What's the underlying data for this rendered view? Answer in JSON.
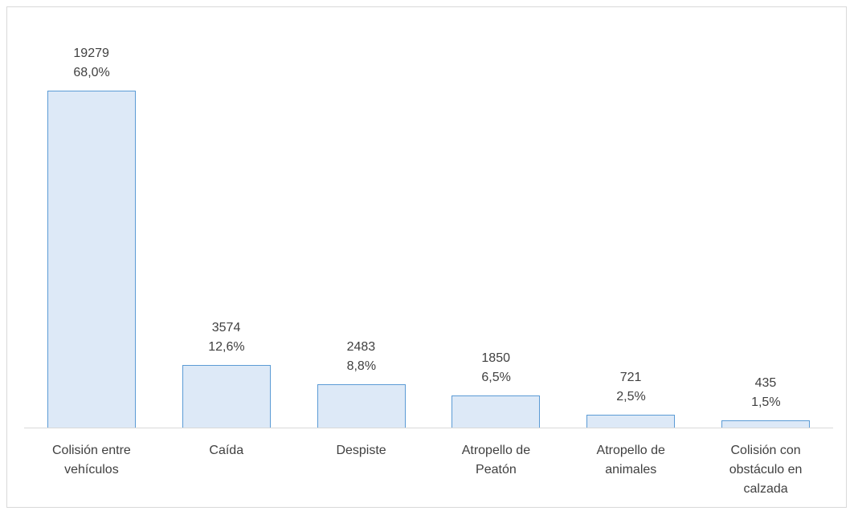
{
  "chart_data": {
    "type": "bar",
    "categories": [
      "Colisión entre vehículos",
      "Caída",
      "Despiste",
      "Atropello de Peatón",
      "Atropello de animales",
      "Colisión con obstáculo en calzada"
    ],
    "values": [
      19279,
      3574,
      2483,
      1850,
      721,
      435
    ],
    "percentages": [
      68.0,
      12.6,
      8.8,
      6.5,
      2.5,
      1.5
    ],
    "percentage_labels": [
      "68,0%",
      "12,6%",
      "8,8%",
      "6,5%",
      "2,5%",
      "1,5%"
    ],
    "color": "#dde9f7",
    "edge_color": "#5b9bd5"
  }
}
